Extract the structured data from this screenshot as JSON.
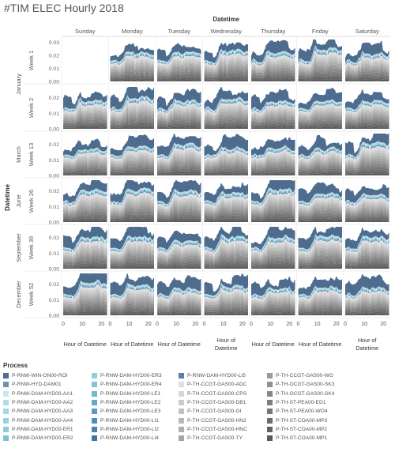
{
  "header": {
    "title": "#TIM ELEC Hourly 2018"
  },
  "chart_data": {
    "type": "area",
    "stacked": true,
    "column_header": "Datetime",
    "columns": [
      "Sunday",
      "Monday",
      "Tuesday",
      "Wednesday",
      "Thursday",
      "Friday",
      "Saturday"
    ],
    "row_header": "Datetime",
    "row_groups": [
      {
        "month": "January",
        "weeks": [
          "Week 1",
          "Week 2"
        ]
      },
      {
        "month": "March",
        "weeks": [
          "Week 13"
        ]
      },
      {
        "month": "June",
        "weeks": [
          "Week 26"
        ]
      },
      {
        "month": "September",
        "weeks": [
          "Week 39"
        ]
      },
      {
        "month": "December",
        "weeks": [
          "Week 52"
        ]
      }
    ],
    "empty_cells": [
      [
        0,
        0
      ]
    ],
    "x_ticks": [
      "0",
      "10",
      "20"
    ],
    "xlim": [
      0,
      23
    ],
    "x_label": "Hour of Datetime",
    "y_ticks_week1": [
      "0.00",
      "0.01",
      "0.02",
      "0.03"
    ],
    "y_ticks_default": [
      "0.00",
      "0.01",
      "0.02"
    ],
    "ylim_week1": [
      0,
      0.032
    ],
    "ylim_default": [
      0,
      0.027
    ],
    "series": [
      {
        "name": "P-RNW-WIN-ON00-ROI",
        "color": "#4e6d8e"
      },
      {
        "name": "P-RNW-HYD-DAM01",
        "color": "#6f90b3"
      },
      {
        "name": "P-RNW-DAM-HYD00-AA1",
        "color": "#c8e6ec"
      },
      {
        "name": "P-RNW-DAM-HYD00-AA2",
        "color": "#b2dde5"
      },
      {
        "name": "P-RNW-DAM-HYD00-AA3",
        "color": "#a6d7e0"
      },
      {
        "name": "P-RNW-DAM-HYD00-AA4",
        "color": "#9bd1dc"
      },
      {
        "name": "P-RNW-DAM-HYD00-ER1",
        "color": "#8fcbd7"
      },
      {
        "name": "P-RNW-DAM-HYD00-ER2",
        "color": "#7cc3d1"
      },
      {
        "name": "P-RNW-DAM-HYD00-ER3",
        "color": "#95cde0"
      },
      {
        "name": "P-RNW-DAM-HYD00-ER4",
        "color": "#84c1d8"
      },
      {
        "name": "P-RNW-DAM-HYD00-LE1",
        "color": "#74b4d0"
      },
      {
        "name": "P-RNW-DAM-HYD00-LE2",
        "color": "#66a8c8"
      },
      {
        "name": "P-RNW-DAM-HYD00-LE3",
        "color": "#599bbf"
      },
      {
        "name": "P-RNW-DAM-HYD00-LI1",
        "color": "#4f8fb6"
      },
      {
        "name": "P-RNW-DAM-HYD00-LI2",
        "color": "#4783ab"
      },
      {
        "name": "P-RNW-DAM-HYD00-LI4",
        "color": "#40779f"
      },
      {
        "name": "P-RNW-DAM-HYD00-LI5",
        "color": "#5b7fa6"
      },
      {
        "name": "P-TH-CCGT-GAS00-ADC",
        "color": "#e0e0e0"
      },
      {
        "name": "P-TH-CCGT-GAS00-CPS",
        "color": "#d6d6d6"
      },
      {
        "name": "P-TH-CCGT-GAS00-DB1",
        "color": "#cccccc"
      },
      {
        "name": "P-TH-CCGT-GAS00-GI",
        "color": "#c2c2c2"
      },
      {
        "name": "P-TH-CCGT-GAS00-HN2",
        "color": "#b8b8b8"
      },
      {
        "name": "P-TH-CCGT-GAS00-HNC",
        "color": "#aeaeae"
      },
      {
        "name": "P-TH-CCGT-GAS00-TY",
        "color": "#a4a4a4"
      },
      {
        "name": "P-TH-CCGT-GAS00-WG",
        "color": "#9a9a9a"
      },
      {
        "name": "P-TH-OCGT-GAS00-SK3",
        "color": "#909090"
      },
      {
        "name": "P-TH-OCGT-GAS00-SK4",
        "color": "#878787"
      },
      {
        "name": "P-TH-ST-PEA00-ED1",
        "color": "#7e7e7e"
      },
      {
        "name": "P-TH-ST-PEA00-WO4",
        "color": "#757575"
      },
      {
        "name": "P-TH-ST-COA00-MP3",
        "color": "#6c6c6c"
      },
      {
        "name": "P-TH-ST-COA00-MP2",
        "color": "#636363"
      },
      {
        "name": "P-TH-ST-COA00-MP1",
        "color": "#5a5a5a"
      }
    ]
  },
  "legend": {
    "title": "Process",
    "items": [
      {
        "label": "P-RNW-WIN-ON00-ROI",
        "color": "#4e6d8e"
      },
      {
        "label": "P-RNW-HYD-DAM01",
        "color": "#6f90b3"
      },
      {
        "label": "P-RNW-DAM-HYD00-AA1",
        "color": "#c8e6ec"
      },
      {
        "label": "P-RNW-DAM-HYD00-AA2",
        "color": "#b2dde5"
      },
      {
        "label": "P-RNW-DAM-HYD00-AA3",
        "color": "#a6d7e0"
      },
      {
        "label": "P-RNW-DAM-HYD00-AA4",
        "color": "#9bd1dc"
      },
      {
        "label": "P-RNW-DAM-HYD00-ER1",
        "color": "#8fcbd7"
      },
      {
        "label": "P-RNW-DAM-HYD00-ER2",
        "color": "#7cc3d1"
      },
      {
        "label": "",
        "color": ""
      },
      {
        "label": "P-RNW-DAM-HYD00-ER3",
        "color": "#95cde0"
      },
      {
        "label": "P-RNW-DAM-HYD00-ER4",
        "color": "#84c1d8"
      },
      {
        "label": "P-RNW-DAM-HYD00-LE1",
        "color": "#74b4d0"
      },
      {
        "label": "P-RNW-DAM-HYD00-LE2",
        "color": "#66a8c8"
      },
      {
        "label": "P-RNW-DAM-HYD00-LE3",
        "color": "#599bbf"
      },
      {
        "label": "P-RNW-DAM-HYD00-LI1",
        "color": "#4f8fb6"
      },
      {
        "label": "P-RNW-DAM-HYD00-LI2",
        "color": "#4783ab"
      },
      {
        "label": "P-RNW-DAM-HYD00-LI4",
        "color": "#40779f"
      },
      {
        "label": "",
        "color": ""
      },
      {
        "label": "P-RNW-DAM-HYD00-LI5",
        "color": "#5b7fa6"
      },
      {
        "label": "P-TH-CCGT-GAS00-ADC",
        "color": "#e0e0e0"
      },
      {
        "label": "P-TH-CCGT-GAS00-CPS",
        "color": "#d6d6d6"
      },
      {
        "label": "P-TH-CCGT-GAS00-DB1",
        "color": "#cccccc"
      },
      {
        "label": "P-TH-CCGT-GAS00-GI",
        "color": "#c2c2c2"
      },
      {
        "label": "P-TH-CCGT-GAS00-HN2",
        "color": "#b8b8b8"
      },
      {
        "label": "P-TH-CCGT-GAS00-HNC",
        "color": "#aeaeae"
      },
      {
        "label": "P-TH-CCGT-GAS00-TY",
        "color": "#a4a4a4"
      },
      {
        "label": "",
        "color": ""
      },
      {
        "label": "P-TH-CCGT-GAS00-WG",
        "color": "#9a9a9a"
      },
      {
        "label": "P-TH-OCGT-GAS00-SK3",
        "color": "#909090"
      },
      {
        "label": "P-TH-OCGT-GAS00-SK4",
        "color": "#878787"
      },
      {
        "label": "P-TH-ST-PEA00-ED1",
        "color": "#7e7e7e"
      },
      {
        "label": "P-TH-ST-PEA00-WO4",
        "color": "#757575"
      },
      {
        "label": "P-TH-ST-COA00-MP3",
        "color": "#6c6c6c"
      },
      {
        "label": "P-TH-ST-COA00-MP2",
        "color": "#636363"
      },
      {
        "label": "P-TH-ST-COA00-MP1",
        "color": "#5a5a5a"
      },
      {
        "label": "",
        "color": ""
      }
    ]
  }
}
